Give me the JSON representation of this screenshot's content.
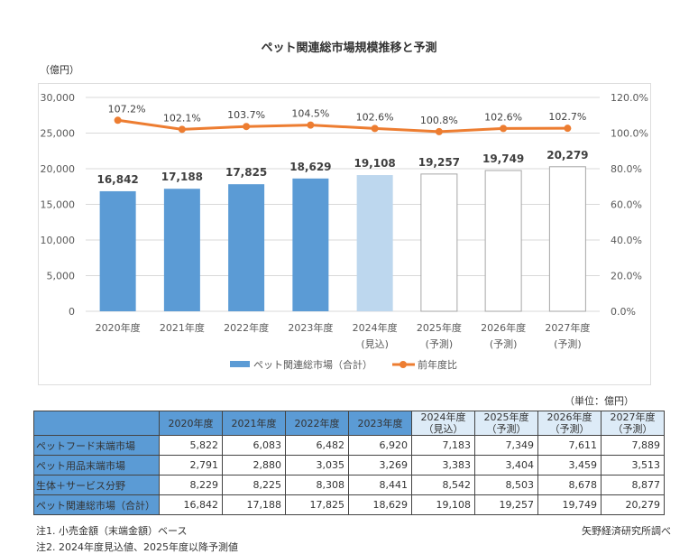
{
  "chart_data": {
    "type": "bar+line",
    "title": "ペット関連総市場規模推移と予測",
    "ylabel": "（億円）",
    "categories": [
      [
        "2020年度",
        ""
      ],
      [
        "2021年度",
        ""
      ],
      [
        "2022年度",
        ""
      ],
      [
        "2023年度",
        ""
      ],
      [
        "2024年度",
        "(見込)"
      ],
      [
        "2025年度",
        "(予測)"
      ],
      [
        "2026年度",
        "(予測)"
      ],
      [
        "2027年度",
        "(予測)"
      ]
    ],
    "ylim": [
      0,
      30000
    ],
    "yticks": [
      "0",
      "5,000",
      "10,000",
      "15,000",
      "20,000",
      "25,000",
      "30,000"
    ],
    "y2lim": [
      0,
      120
    ],
    "y2ticks": [
      "0.0%",
      "20.0%",
      "40.0%",
      "60.0%",
      "80.0%",
      "100.0%",
      "120.0%"
    ],
    "series": [
      {
        "name": "ペット関連総市場（合計）",
        "type": "bar",
        "values": [
          16842,
          17188,
          17825,
          18629,
          19108,
          19257,
          19749,
          20279
        ],
        "labels": [
          "16,842",
          "17,188",
          "17,825",
          "18,629",
          "19,108",
          "19,257",
          "19,749",
          "20,279"
        ],
        "styles": [
          "actual",
          "actual",
          "actual",
          "actual",
          "estimate",
          "forecast",
          "forecast",
          "forecast"
        ]
      },
      {
        "name": "前年度比",
        "type": "line",
        "axis": "right",
        "values": [
          107.2,
          102.1,
          103.7,
          104.5,
          102.6,
          100.8,
          102.6,
          102.7
        ],
        "labels": [
          "107.2%",
          "102.1%",
          "103.7%",
          "104.5%",
          "102.6%",
          "100.8%",
          "102.6%",
          "102.7%"
        ]
      }
    ],
    "colors": {
      "actual": "#5b9bd5",
      "estimate": "#bdd7ee",
      "forecast": "#ffffff",
      "line": "#ed7d31"
    },
    "grid": true,
    "legend": "bottom"
  },
  "table": {
    "unit": "（単位：億円）",
    "headers": [
      [
        "2020年度",
        ""
      ],
      [
        "2021年度",
        ""
      ],
      [
        "2022年度",
        ""
      ],
      [
        "2023年度",
        ""
      ],
      [
        "2024年度",
        "（見込）"
      ],
      [
        "2025年度",
        "（予測）"
      ],
      [
        "2026年度",
        "（予測）"
      ],
      [
        "2027年度",
        "（予測）"
      ]
    ],
    "rows": [
      {
        "label": "ペットフード末端市場",
        "values": [
          "5,822",
          "6,083",
          "6,482",
          "6,920",
          "7,183",
          "7,349",
          "7,611",
          "7,889"
        ]
      },
      {
        "label": "ペット用品末端市場",
        "values": [
          "2,791",
          "2,880",
          "3,035",
          "3,269",
          "3,383",
          "3,404",
          "3,459",
          "3,513"
        ]
      },
      {
        "label": "生体＋サービス分野",
        "values": [
          "8,229",
          "8,225",
          "8,308",
          "8,441",
          "8,542",
          "8,503",
          "8,678",
          "8,877"
        ]
      },
      {
        "label": "ペット関連総市場（合計）",
        "values": [
          "16,842",
          "17,188",
          "17,825",
          "18,629",
          "19,108",
          "19,257",
          "19,749",
          "20,279"
        ]
      }
    ]
  },
  "notes": [
    "注1. 小売金額（末端金額）ベース",
    "注2. 2024年度見込値、2025年度以降予測値"
  ],
  "source": "矢野経済研究所調べ"
}
